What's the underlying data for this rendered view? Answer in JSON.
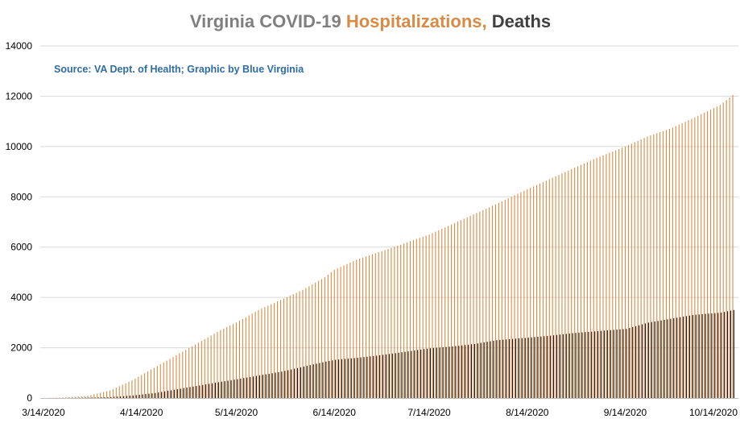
{
  "colors": {
    "hospitalizations": "#d98b43",
    "deaths": "#1a0e08",
    "title_gray": "#7f7f7f",
    "grid": "#d9d9d9",
    "source": "#2e6da4"
  },
  "chart_data": {
    "type": "bar",
    "title": {
      "part1": "Virginia COVID-19 ",
      "part2": "Hospitalizations, ",
      "part3": "Deaths"
    },
    "source_note": "Source: VA Dept. of Health; Graphic by Blue Virginia",
    "xlabel": "",
    "ylabel": "",
    "ylim": [
      0,
      14000
    ],
    "grid": true,
    "y_ticks": [
      "0",
      "2000",
      "4000",
      "6000",
      "8000",
      "10000",
      "12000",
      "14000"
    ],
    "x_ticks": [
      "3/14/2020",
      "4/14/2020",
      "5/14/2020",
      "6/14/2020",
      "7/14/2020",
      "8/14/2020",
      "9/14/2020",
      "10/14/2020"
    ],
    "x_range": [
      "2020-03-14",
      "2020-10-18"
    ],
    "series": [
      {
        "name": "Hospitalizations",
        "points": [
          [
            "2020-03-14",
            0
          ],
          [
            "2020-03-21",
            20
          ],
          [
            "2020-03-28",
            90
          ],
          [
            "2020-04-04",
            300
          ],
          [
            "2020-04-11",
            700
          ],
          [
            "2020-04-18",
            1200
          ],
          [
            "2020-04-25",
            1700
          ],
          [
            "2020-05-02",
            2200
          ],
          [
            "2020-05-09",
            2700
          ],
          [
            "2020-05-14",
            3000
          ],
          [
            "2020-05-21",
            3500
          ],
          [
            "2020-05-28",
            3900
          ],
          [
            "2020-06-04",
            4300
          ],
          [
            "2020-06-11",
            4800
          ],
          [
            "2020-06-14",
            5100
          ],
          [
            "2020-06-21",
            5500
          ],
          [
            "2020-06-28",
            5800
          ],
          [
            "2020-07-05",
            6100
          ],
          [
            "2020-07-14",
            6500
          ],
          [
            "2020-07-21",
            6900
          ],
          [
            "2020-07-28",
            7300
          ],
          [
            "2020-08-04",
            7700
          ],
          [
            "2020-08-14",
            8300
          ],
          [
            "2020-08-21",
            8700
          ],
          [
            "2020-08-28",
            9100
          ],
          [
            "2020-09-04",
            9500
          ],
          [
            "2020-09-14",
            10000
          ],
          [
            "2020-09-21",
            10400
          ],
          [
            "2020-09-28",
            10700
          ],
          [
            "2020-10-05",
            11100
          ],
          [
            "2020-10-14",
            11650
          ],
          [
            "2020-10-18",
            12050
          ]
        ]
      },
      {
        "name": "Deaths",
        "points": [
          [
            "2020-03-14",
            0
          ],
          [
            "2020-03-21",
            5
          ],
          [
            "2020-03-28",
            15
          ],
          [
            "2020-04-04",
            40
          ],
          [
            "2020-04-11",
            100
          ],
          [
            "2020-04-18",
            200
          ],
          [
            "2020-04-25",
            350
          ],
          [
            "2020-05-02",
            500
          ],
          [
            "2020-05-09",
            650
          ],
          [
            "2020-05-14",
            750
          ],
          [
            "2020-05-21",
            900
          ],
          [
            "2020-05-28",
            1050
          ],
          [
            "2020-06-04",
            1250
          ],
          [
            "2020-06-11",
            1450
          ],
          [
            "2020-06-14",
            1520
          ],
          [
            "2020-06-21",
            1600
          ],
          [
            "2020-06-28",
            1700
          ],
          [
            "2020-07-05",
            1820
          ],
          [
            "2020-07-14",
            1980
          ],
          [
            "2020-07-21",
            2050
          ],
          [
            "2020-07-28",
            2150
          ],
          [
            "2020-08-04",
            2300
          ],
          [
            "2020-08-14",
            2400
          ],
          [
            "2020-08-21",
            2480
          ],
          [
            "2020-08-28",
            2580
          ],
          [
            "2020-09-04",
            2650
          ],
          [
            "2020-09-14",
            2750
          ],
          [
            "2020-09-21",
            3000
          ],
          [
            "2020-09-28",
            3150
          ],
          [
            "2020-10-05",
            3300
          ],
          [
            "2020-10-14",
            3400
          ],
          [
            "2020-10-18",
            3500
          ]
        ]
      }
    ]
  }
}
